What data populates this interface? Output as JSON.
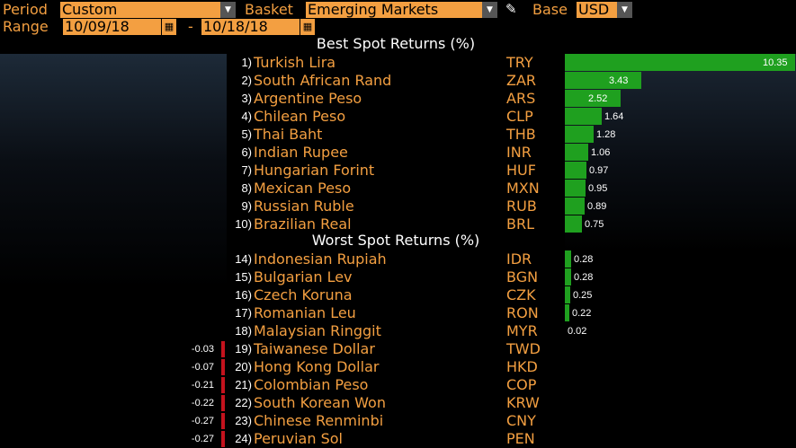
{
  "toolbar": {
    "period_label": "Period",
    "period_value": "Custom",
    "basket_label": "Basket",
    "basket_value": "Emerging Markets",
    "base_label": "Base",
    "base_value": "USD",
    "range_label": "Range",
    "range_start": "10/09/18",
    "range_separator": "-",
    "range_end": "10/18/18"
  },
  "best": {
    "title": "Best Spot Returns (%)",
    "rows": [
      {
        "rank": "1)",
        "name": "Turkish Lira",
        "code": "TRY",
        "value": "10.35"
      },
      {
        "rank": "2)",
        "name": "South African Rand",
        "code": "ZAR",
        "value": "3.43"
      },
      {
        "rank": "3)",
        "name": "Argentine Peso",
        "code": "ARS",
        "value": "2.52"
      },
      {
        "rank": "4)",
        "name": "Chilean Peso",
        "code": "CLP",
        "value": "1.64"
      },
      {
        "rank": "5)",
        "name": "Thai Baht",
        "code": "THB",
        "value": "1.28"
      },
      {
        "rank": "6)",
        "name": "Indian Rupee",
        "code": "INR",
        "value": "1.06"
      },
      {
        "rank": "7)",
        "name": "Hungarian Forint",
        "code": "HUF",
        "value": "0.97"
      },
      {
        "rank": "8)",
        "name": "Mexican Peso",
        "code": "MXN",
        "value": "0.95"
      },
      {
        "rank": "9)",
        "name": "Russian Ruble",
        "code": "RUB",
        "value": "0.89"
      },
      {
        "rank": "10)",
        "name": "Brazilian Real",
        "code": "BRL",
        "value": "0.75"
      }
    ]
  },
  "worst": {
    "title": "Worst Spot Returns (%)",
    "rows": [
      {
        "rank": "14)",
        "name": "Indonesian Rupiah",
        "code": "IDR",
        "value": "0.28"
      },
      {
        "rank": "15)",
        "name": "Bulgarian Lev",
        "code": "BGN",
        "value": "0.28"
      },
      {
        "rank": "16)",
        "name": "Czech Koruna",
        "code": "CZK",
        "value": "0.25"
      },
      {
        "rank": "17)",
        "name": "Romanian Leu",
        "code": "RON",
        "value": "0.22"
      },
      {
        "rank": "18)",
        "name": "Malaysian Ringgit",
        "code": "MYR",
        "value": "0.02"
      },
      {
        "rank": "19)",
        "name": "Taiwanese Dollar",
        "code": "TWD",
        "value": "-0.03"
      },
      {
        "rank": "20)",
        "name": "Hong Kong Dollar",
        "code": "HKD",
        "value": "-0.07"
      },
      {
        "rank": "21)",
        "name": "Colombian Peso",
        "code": "COP",
        "value": "-0.21"
      },
      {
        "rank": "22)",
        "name": "South Korean Won",
        "code": "KRW",
        "value": "-0.22"
      },
      {
        "rank": "23)",
        "name": "Chinese Renminbi",
        "code": "CNY",
        "value": "-0.27"
      },
      {
        "rank": "24)",
        "name": "Peruvian Sol",
        "code": "PEN",
        "value": "-0.27"
      }
    ]
  },
  "colors": {
    "accent": "#f39f41",
    "positive": "#1fa01f",
    "negative": "#c4121d"
  },
  "icons": {
    "dropdown": "chevron-down-icon",
    "edit": "pencil-icon",
    "calendar": "calendar-icon"
  }
}
